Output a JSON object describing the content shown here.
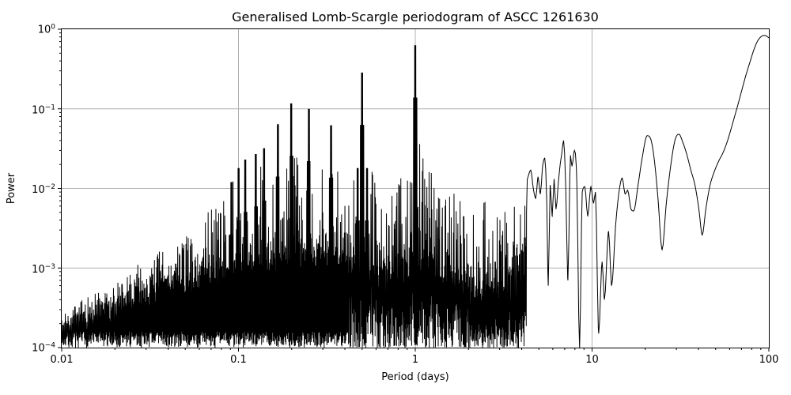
{
  "chart_data": {
    "type": "line",
    "title": "Generalised Lomb-Scargle periodogram of ASCC 1261630",
    "xlabel": "Period (days)",
    "ylabel": "Power",
    "xscale": "log",
    "yscale": "log",
    "xlim": [
      0.01,
      100
    ],
    "ylim": [
      0.0001,
      1.0
    ],
    "grid": true,
    "legend": "none",
    "line_color": "#000000",
    "grid_color": "#b0b0b0",
    "x_tick_labels": [
      "0.01",
      "0.1",
      "1",
      "10",
      "100"
    ],
    "y_tick_labels": [
      {
        "base": "10",
        "exp": "0"
      },
      {
        "base": "10",
        "exp": "−1"
      },
      {
        "base": "10",
        "exp": "−2"
      },
      {
        "base": "10",
        "exp": "−3"
      },
      {
        "base": "10",
        "exp": "−4"
      }
    ],
    "harmonic_peaks": [
      {
        "period": 0.0909,
        "power": 0.012
      },
      {
        "period": 0.0995,
        "power": 0.018
      },
      {
        "period": 0.109,
        "power": 0.023
      },
      {
        "period": 0.125,
        "power": 0.027
      },
      {
        "period": 0.1395,
        "power": 0.032
      },
      {
        "period": 0.1661,
        "power": 0.064
      },
      {
        "period": 0.1984,
        "power": 0.117
      },
      {
        "period": 0.2489,
        "power": 0.1
      },
      {
        "period": 0.3326,
        "power": 0.062
      },
      {
        "period": 0.47,
        "power": 0.018
      },
      {
        "period": 0.498,
        "power": 0.285
      },
      {
        "period": 0.53,
        "power": 0.018
      },
      {
        "period": 0.9963,
        "power": 0.63
      }
    ],
    "noise_envelope": [
      {
        "period": 0.01,
        "top": 0.00026,
        "base": 0.00016
      },
      {
        "period": 0.013,
        "top": 0.0004,
        "base": 0.0002
      },
      {
        "period": 0.017,
        "top": 0.00055,
        "base": 0.00026
      },
      {
        "period": 0.022,
        "top": 0.0008,
        "base": 0.00034
      },
      {
        "period": 0.028,
        "top": 0.0012,
        "base": 0.00045
      },
      {
        "period": 0.036,
        "top": 0.0019,
        "base": 0.00055
      },
      {
        "period": 0.047,
        "top": 0.0024,
        "base": 0.00065
      },
      {
        "period": 0.06,
        "top": 0.0035,
        "base": 0.00075
      },
      {
        "period": 0.07,
        "top": 0.0075,
        "base": 0.00085
      },
      {
        "period": 0.082,
        "top": 0.008,
        "base": 0.0009
      },
      {
        "period": 0.1,
        "top": 0.016,
        "base": 0.001
      },
      {
        "period": 0.12,
        "top": 0.024,
        "base": 0.0011
      },
      {
        "period": 0.15,
        "top": 0.028,
        "base": 0.0012
      },
      {
        "period": 0.18,
        "top": 0.03,
        "base": 0.0013
      },
      {
        "period": 0.22,
        "top": 0.028,
        "base": 0.0014
      },
      {
        "period": 0.27,
        "top": 0.016,
        "base": 0.0014
      },
      {
        "period": 0.33,
        "top": 0.022,
        "base": 0.0013
      },
      {
        "period": 0.4,
        "top": 0.012,
        "base": 0.0012
      },
      {
        "period": 0.46,
        "top": 0.02,
        "base": 0.001
      },
      {
        "period": 0.52,
        "top": 0.022,
        "base": 0.0009
      },
      {
        "period": 0.6,
        "top": 0.014,
        "base": 0.0008
      },
      {
        "period": 0.7,
        "top": 0.0065,
        "base": 0.0007
      },
      {
        "period": 0.8,
        "top": 0.012,
        "base": 0.0008
      },
      {
        "period": 0.9,
        "top": 0.022,
        "base": 0.0009
      },
      {
        "period": 0.98,
        "top": 0.035,
        "base": 0.001
      },
      {
        "period": 1.1,
        "top": 0.038,
        "base": 0.0009
      },
      {
        "period": 1.25,
        "top": 0.028,
        "base": 0.0008
      },
      {
        "period": 1.45,
        "top": 0.012,
        "base": 0.0007
      },
      {
        "period": 1.7,
        "top": 0.009,
        "base": 0.0006
      },
      {
        "period": 2.0,
        "top": 0.004,
        "base": 0.0005
      },
      {
        "period": 2.4,
        "top": 0.009,
        "base": 0.0005
      },
      {
        "period": 2.8,
        "top": 0.006,
        "base": 0.0005
      },
      {
        "period": 3.3,
        "top": 0.005,
        "base": 0.0005
      },
      {
        "period": 3.8,
        "top": 0.009,
        "base": 0.0006
      },
      {
        "period": 4.25,
        "top": 0.015,
        "base": 0.0008
      }
    ],
    "smooth_curve": [
      [
        4.3,
        0.013
      ],
      [
        4.5,
        0.017
      ],
      [
        4.65,
        0.01
      ],
      [
        4.8,
        0.0075
      ],
      [
        4.95,
        0.014
      ],
      [
        5.1,
        0.0085
      ],
      [
        5.25,
        0.019
      ],
      [
        5.4,
        0.024
      ],
      [
        5.55,
        0.006
      ],
      [
        5.65,
        0.0006
      ],
      [
        5.8,
        0.011
      ],
      [
        5.95,
        0.0045
      ],
      [
        6.1,
        0.013
      ],
      [
        6.25,
        0.0055
      ],
      [
        6.45,
        0.012
      ],
      [
        6.6,
        0.02
      ],
      [
        6.75,
        0.028
      ],
      [
        6.9,
        0.04
      ],
      [
        7.1,
        0.01
      ],
      [
        7.3,
        0.0007
      ],
      [
        7.55,
        0.026
      ],
      [
        7.7,
        0.019
      ],
      [
        7.95,
        0.03
      ],
      [
        8.2,
        0.012
      ],
      [
        8.5,
        0.0001
      ],
      [
        8.8,
        0.009
      ],
      [
        9.1,
        0.0105
      ],
      [
        9.45,
        0.0045
      ],
      [
        9.85,
        0.0105
      ],
      [
        10.2,
        0.0065
      ],
      [
        10.45,
        0.009
      ],
      [
        10.9,
        0.00015
      ],
      [
        11.4,
        0.0012
      ],
      [
        11.75,
        0.0004
      ],
      [
        12.4,
        0.0029
      ],
      [
        12.9,
        0.0006
      ],
      [
        13.6,
        0.0035
      ],
      [
        14.2,
        0.009
      ],
      [
        14.8,
        0.0135
      ],
      [
        15.4,
        0.0085
      ],
      [
        15.9,
        0.0095
      ],
      [
        16.6,
        0.0055
      ],
      [
        17.2,
        0.0052
      ],
      [
        18.2,
        0.011
      ],
      [
        19.2,
        0.024
      ],
      [
        20.5,
        0.046
      ],
      [
        21.6,
        0.04
      ],
      [
        22.6,
        0.021
      ],
      [
        23.6,
        0.0075
      ],
      [
        24.9,
        0.0017
      ],
      [
        26.3,
        0.0065
      ],
      [
        28.0,
        0.021
      ],
      [
        29.5,
        0.041
      ],
      [
        31.0,
        0.048
      ],
      [
        32.6,
        0.038
      ],
      [
        34.3,
        0.027
      ],
      [
        36.2,
        0.017
      ],
      [
        38.2,
        0.011
      ],
      [
        40.2,
        0.0055
      ],
      [
        42.0,
        0.0026
      ],
      [
        44.0,
        0.0055
      ],
      [
        46.5,
        0.011
      ],
      [
        49.0,
        0.016
      ],
      [
        52.0,
        0.022
      ],
      [
        55.0,
        0.028
      ],
      [
        58.0,
        0.038
      ],
      [
        61.0,
        0.055
      ],
      [
        64.0,
        0.08
      ],
      [
        67.0,
        0.115
      ],
      [
        70.5,
        0.175
      ],
      [
        74.0,
        0.26
      ],
      [
        78.0,
        0.38
      ],
      [
        82.0,
        0.54
      ],
      [
        86.0,
        0.7
      ],
      [
        90.0,
        0.8
      ],
      [
        94.0,
        0.835
      ],
      [
        97.0,
        0.82
      ],
      [
        100.0,
        0.78
      ]
    ]
  }
}
